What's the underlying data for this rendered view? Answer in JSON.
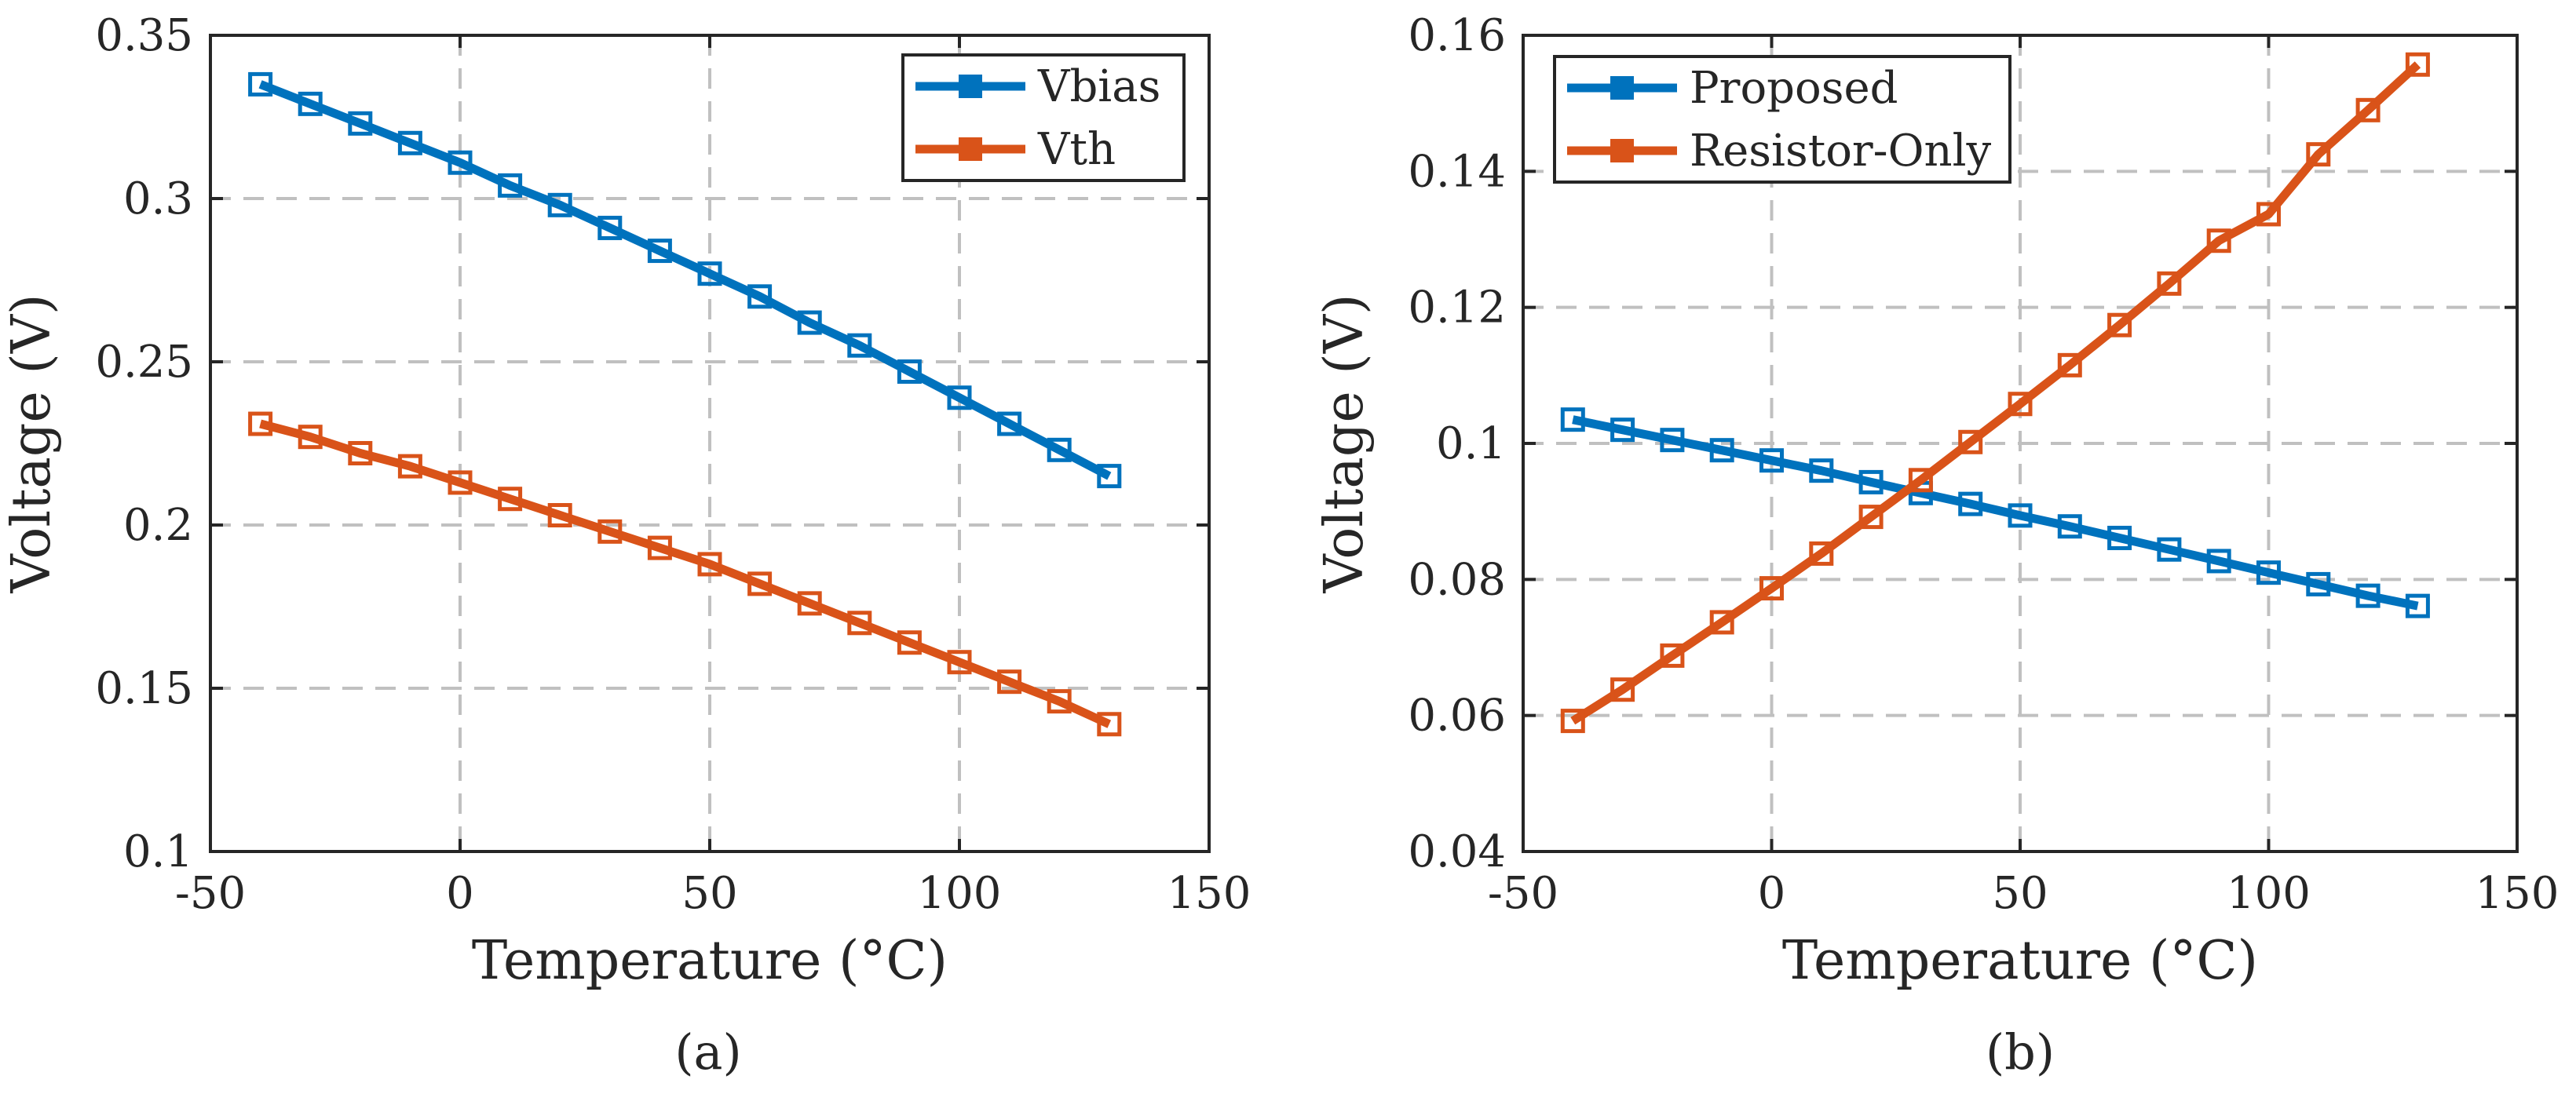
{
  "figure": {
    "panel_labels": [
      "(a)",
      "(b)"
    ]
  },
  "colors": {
    "blue": "#0072BD",
    "orange": "#D95319"
  },
  "chart_data": [
    {
      "type": "line",
      "panel": "(a)",
      "title": "",
      "xlabel": "Temperature (°C)",
      "ylabel": "Voltage (V)",
      "xlim": [
        -50,
        150
      ],
      "ylim": [
        0.1,
        0.35
      ],
      "xticks": [
        -50,
        0,
        50,
        100,
        150
      ],
      "yticks": [
        0.1,
        0.15,
        0.2,
        0.25,
        0.3,
        0.35
      ],
      "xtick_labels": [
        "-50",
        "0",
        "50",
        "100",
        "150"
      ],
      "ytick_labels": [
        "0.1",
        "0.15",
        "0.2",
        "0.25",
        "0.3",
        "0.35"
      ],
      "grid": true,
      "legend_position": "top-right",
      "x": [
        -40,
        -30,
        -20,
        -10,
        0,
        10,
        20,
        30,
        40,
        50,
        60,
        70,
        80,
        90,
        100,
        110,
        120,
        130
      ],
      "series": [
        {
          "name": "Vbias",
          "color": "#0072BD",
          "marker": "square",
          "values": [
            0.335,
            0.329,
            0.323,
            0.317,
            0.311,
            0.304,
            0.298,
            0.291,
            0.284,
            0.277,
            0.27,
            0.262,
            0.255,
            0.247,
            0.239,
            0.231,
            0.223,
            0.215
          ]
        },
        {
          "name": "Vth",
          "color": "#D95319",
          "marker": "square",
          "values": [
            0.231,
            0.227,
            0.222,
            0.218,
            0.213,
            0.208,
            0.203,
            0.198,
            0.193,
            0.188,
            0.182,
            0.176,
            0.17,
            0.164,
            0.158,
            0.152,
            0.146,
            0.139
          ]
        }
      ]
    },
    {
      "type": "line",
      "panel": "(b)",
      "title": "",
      "xlabel": "Temperature (°C)",
      "ylabel": "Voltage (V)",
      "xlim": [
        -50,
        150
      ],
      "ylim": [
        0.04,
        0.16
      ],
      "xticks": [
        -50,
        0,
        50,
        100,
        150
      ],
      "yticks": [
        0.04,
        0.06,
        0.08,
        0.1,
        0.12,
        0.14,
        0.16
      ],
      "xtick_labels": [
        "-50",
        "0",
        "50",
        "100",
        "150"
      ],
      "ytick_labels": [
        "0.04",
        "0.06",
        "0.08",
        "0.1",
        "0.12",
        "0.14",
        "0.16"
      ],
      "grid": true,
      "legend_position": "top-left",
      "x": [
        -40,
        -30,
        -20,
        -10,
        0,
        10,
        20,
        30,
        40,
        50,
        60,
        70,
        80,
        90,
        100,
        110,
        120,
        130
      ],
      "series": [
        {
          "name": "Proposed",
          "color": "#0072BD",
          "marker": "square",
          "values": [
            0.1035,
            0.102,
            0.1005,
            0.099,
            0.0975,
            0.096,
            0.0943,
            0.0927,
            0.0911,
            0.0894,
            0.0878,
            0.0861,
            0.0844,
            0.0827,
            0.081,
            0.0793,
            0.0776,
            0.0761
          ]
        },
        {
          "name": "Resistor-Only",
          "color": "#D95319",
          "marker": "square",
          "values": [
            0.0592,
            0.0638,
            0.0688,
            0.0737,
            0.0787,
            0.0838,
            0.0892,
            0.0946,
            0.1002,
            0.1058,
            0.1115,
            0.1174,
            0.1235,
            0.1298,
            0.1337,
            0.1425,
            0.149,
            0.1557
          ]
        }
      ]
    }
  ]
}
